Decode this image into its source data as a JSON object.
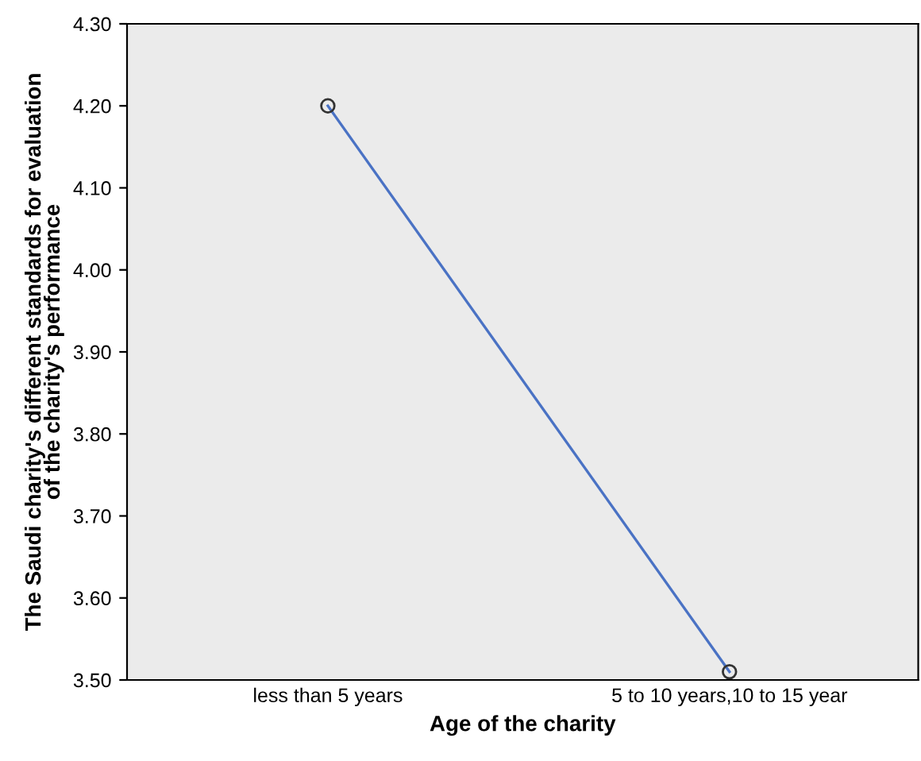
{
  "chart_data": {
    "type": "line",
    "xlabel": "Age of the charity",
    "ylabel": "The Saudi charity's different standards for evaluation\nof the charity's performance",
    "categories": [
      "less than 5 years",
      "5 to 10 years,10 to 15 year"
    ],
    "series": [
      {
        "color": "#4a72c4",
        "values": [
          4.2,
          3.51
        ]
      }
    ],
    "marker": "circle",
    "grid": false,
    "legend": false,
    "ylim": [
      3.5,
      4.3
    ],
    "yticks": [
      {
        "value": 3.5,
        "label": "3.50"
      },
      {
        "value": 3.6,
        "label": "3.60"
      },
      {
        "value": 3.7,
        "label": "3.70"
      },
      {
        "value": 3.8,
        "label": "3.80"
      },
      {
        "value": 3.9,
        "label": "3.90"
      },
      {
        "value": 4.0,
        "label": "4.00"
      },
      {
        "value": 4.1,
        "label": "4.10"
      },
      {
        "value": 4.2,
        "label": "4.20"
      },
      {
        "value": 4.3,
        "label": "4.30"
      }
    ]
  }
}
